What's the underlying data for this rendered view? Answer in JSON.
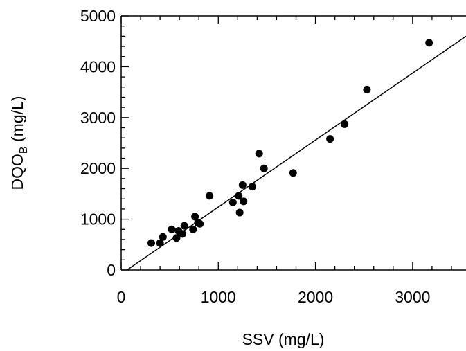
{
  "chart_data": {
    "type": "scatter",
    "xlabel": "SSV (mg/L)",
    "ylabel": {
      "main": "DQO",
      "subscript": "B",
      "suffix": " (mg/L)"
    },
    "xlim": [
      0,
      3550
    ],
    "ylim": [
      0,
      5000
    ],
    "x_ticks": [
      0,
      1000,
      2000,
      3000
    ],
    "y_ticks": [
      0,
      1000,
      2000,
      3000,
      4000,
      5000
    ],
    "x_minor_step": 200,
    "y_minor_step": 200,
    "grid": false,
    "points": [
      {
        "x": 310,
        "y": 530
      },
      {
        "x": 400,
        "y": 530
      },
      {
        "x": 430,
        "y": 650
      },
      {
        "x": 520,
        "y": 800
      },
      {
        "x": 570,
        "y": 630
      },
      {
        "x": 590,
        "y": 770
      },
      {
        "x": 630,
        "y": 710
      },
      {
        "x": 650,
        "y": 870
      },
      {
        "x": 740,
        "y": 800
      },
      {
        "x": 760,
        "y": 1050
      },
      {
        "x": 790,
        "y": 930
      },
      {
        "x": 810,
        "y": 910
      },
      {
        "x": 910,
        "y": 1460
      },
      {
        "x": 1150,
        "y": 1330
      },
      {
        "x": 1210,
        "y": 1460
      },
      {
        "x": 1220,
        "y": 1130
      },
      {
        "x": 1250,
        "y": 1670
      },
      {
        "x": 1260,
        "y": 1350
      },
      {
        "x": 1350,
        "y": 1640
      },
      {
        "x": 1420,
        "y": 2290
      },
      {
        "x": 1470,
        "y": 2000
      },
      {
        "x": 1770,
        "y": 1910
      },
      {
        "x": 2150,
        "y": 2580
      },
      {
        "x": 2300,
        "y": 2870
      },
      {
        "x": 2530,
        "y": 3550
      },
      {
        "x": 3170,
        "y": 4470
      }
    ],
    "fit_line": {
      "x": [
        60,
        3550
      ],
      "y": [
        0,
        4600
      ]
    }
  }
}
